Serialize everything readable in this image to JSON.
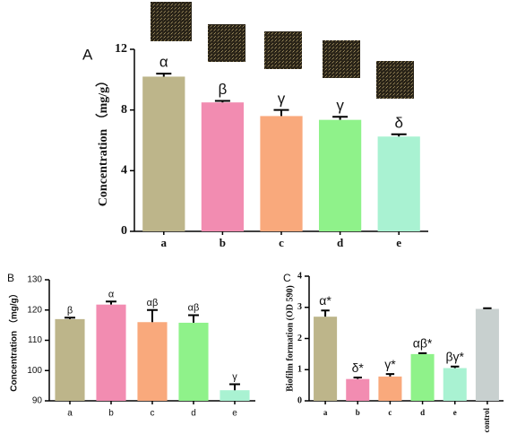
{
  "chart_data": [
    {
      "type": "bar",
      "panel_label": "A",
      "y_label": "Concentration （mg/g）",
      "categories": [
        "a",
        "b",
        "c",
        "d",
        "e"
      ],
      "values": [
        10.2,
        8.5,
        7.6,
        7.35,
        6.25
      ],
      "errors": [
        0.2,
        0.1,
        0.4,
        0.2,
        0.15
      ],
      "annotations": [
        "α",
        "β",
        "γ",
        "γ",
        "δ"
      ],
      "colors": [
        "#bdb58a",
        "#f28cb1",
        "#f9a97c",
        "#8ff28a",
        "#a9f2d2"
      ],
      "ylim": [
        0,
        12
      ],
      "yticks": [
        0,
        4,
        8,
        12
      ]
    },
    {
      "type": "bar",
      "panel_label": "B",
      "y_label": "Concentration （mg/g）",
      "categories": [
        "a",
        "b",
        "c",
        "d",
        "e"
      ],
      "values": [
        117,
        121.8,
        116,
        115.8,
        93.5
      ],
      "errors": [
        0.5,
        1,
        4,
        2.5,
        2
      ],
      "annotations": [
        "β",
        "α",
        "αβ",
        "αβ",
        "γ"
      ],
      "colors": [
        "#bdb58a",
        "#f28cb1",
        "#f9a97c",
        "#8ff28a",
        "#a9f2d2"
      ],
      "ylim": [
        90,
        130
      ],
      "yticks": [
        90,
        100,
        110,
        120,
        130
      ]
    },
    {
      "type": "bar",
      "panel_label": "C",
      "y_label": "Biofilm formation (OD 590)",
      "categories": [
        "a",
        "b",
        "c",
        "d",
        "e",
        "control"
      ],
      "values": [
        2.7,
        0.7,
        0.78,
        1.5,
        1.05,
        2.95
      ],
      "errors": [
        0.2,
        0.05,
        0.08,
        0.03,
        0.05,
        0.02
      ],
      "annotations": [
        "α*",
        "δ*",
        "γ*",
        "αβ*",
        "βγ*"
      ],
      "colors": [
        "#bdb58a",
        "#f28cb1",
        "#f9a97c",
        "#8ff28a",
        "#a9f2d2",
        "#c8d0cf"
      ],
      "ylim": [
        0,
        4
      ],
      "yticks": [
        0,
        1,
        2,
        3,
        4
      ]
    }
  ]
}
